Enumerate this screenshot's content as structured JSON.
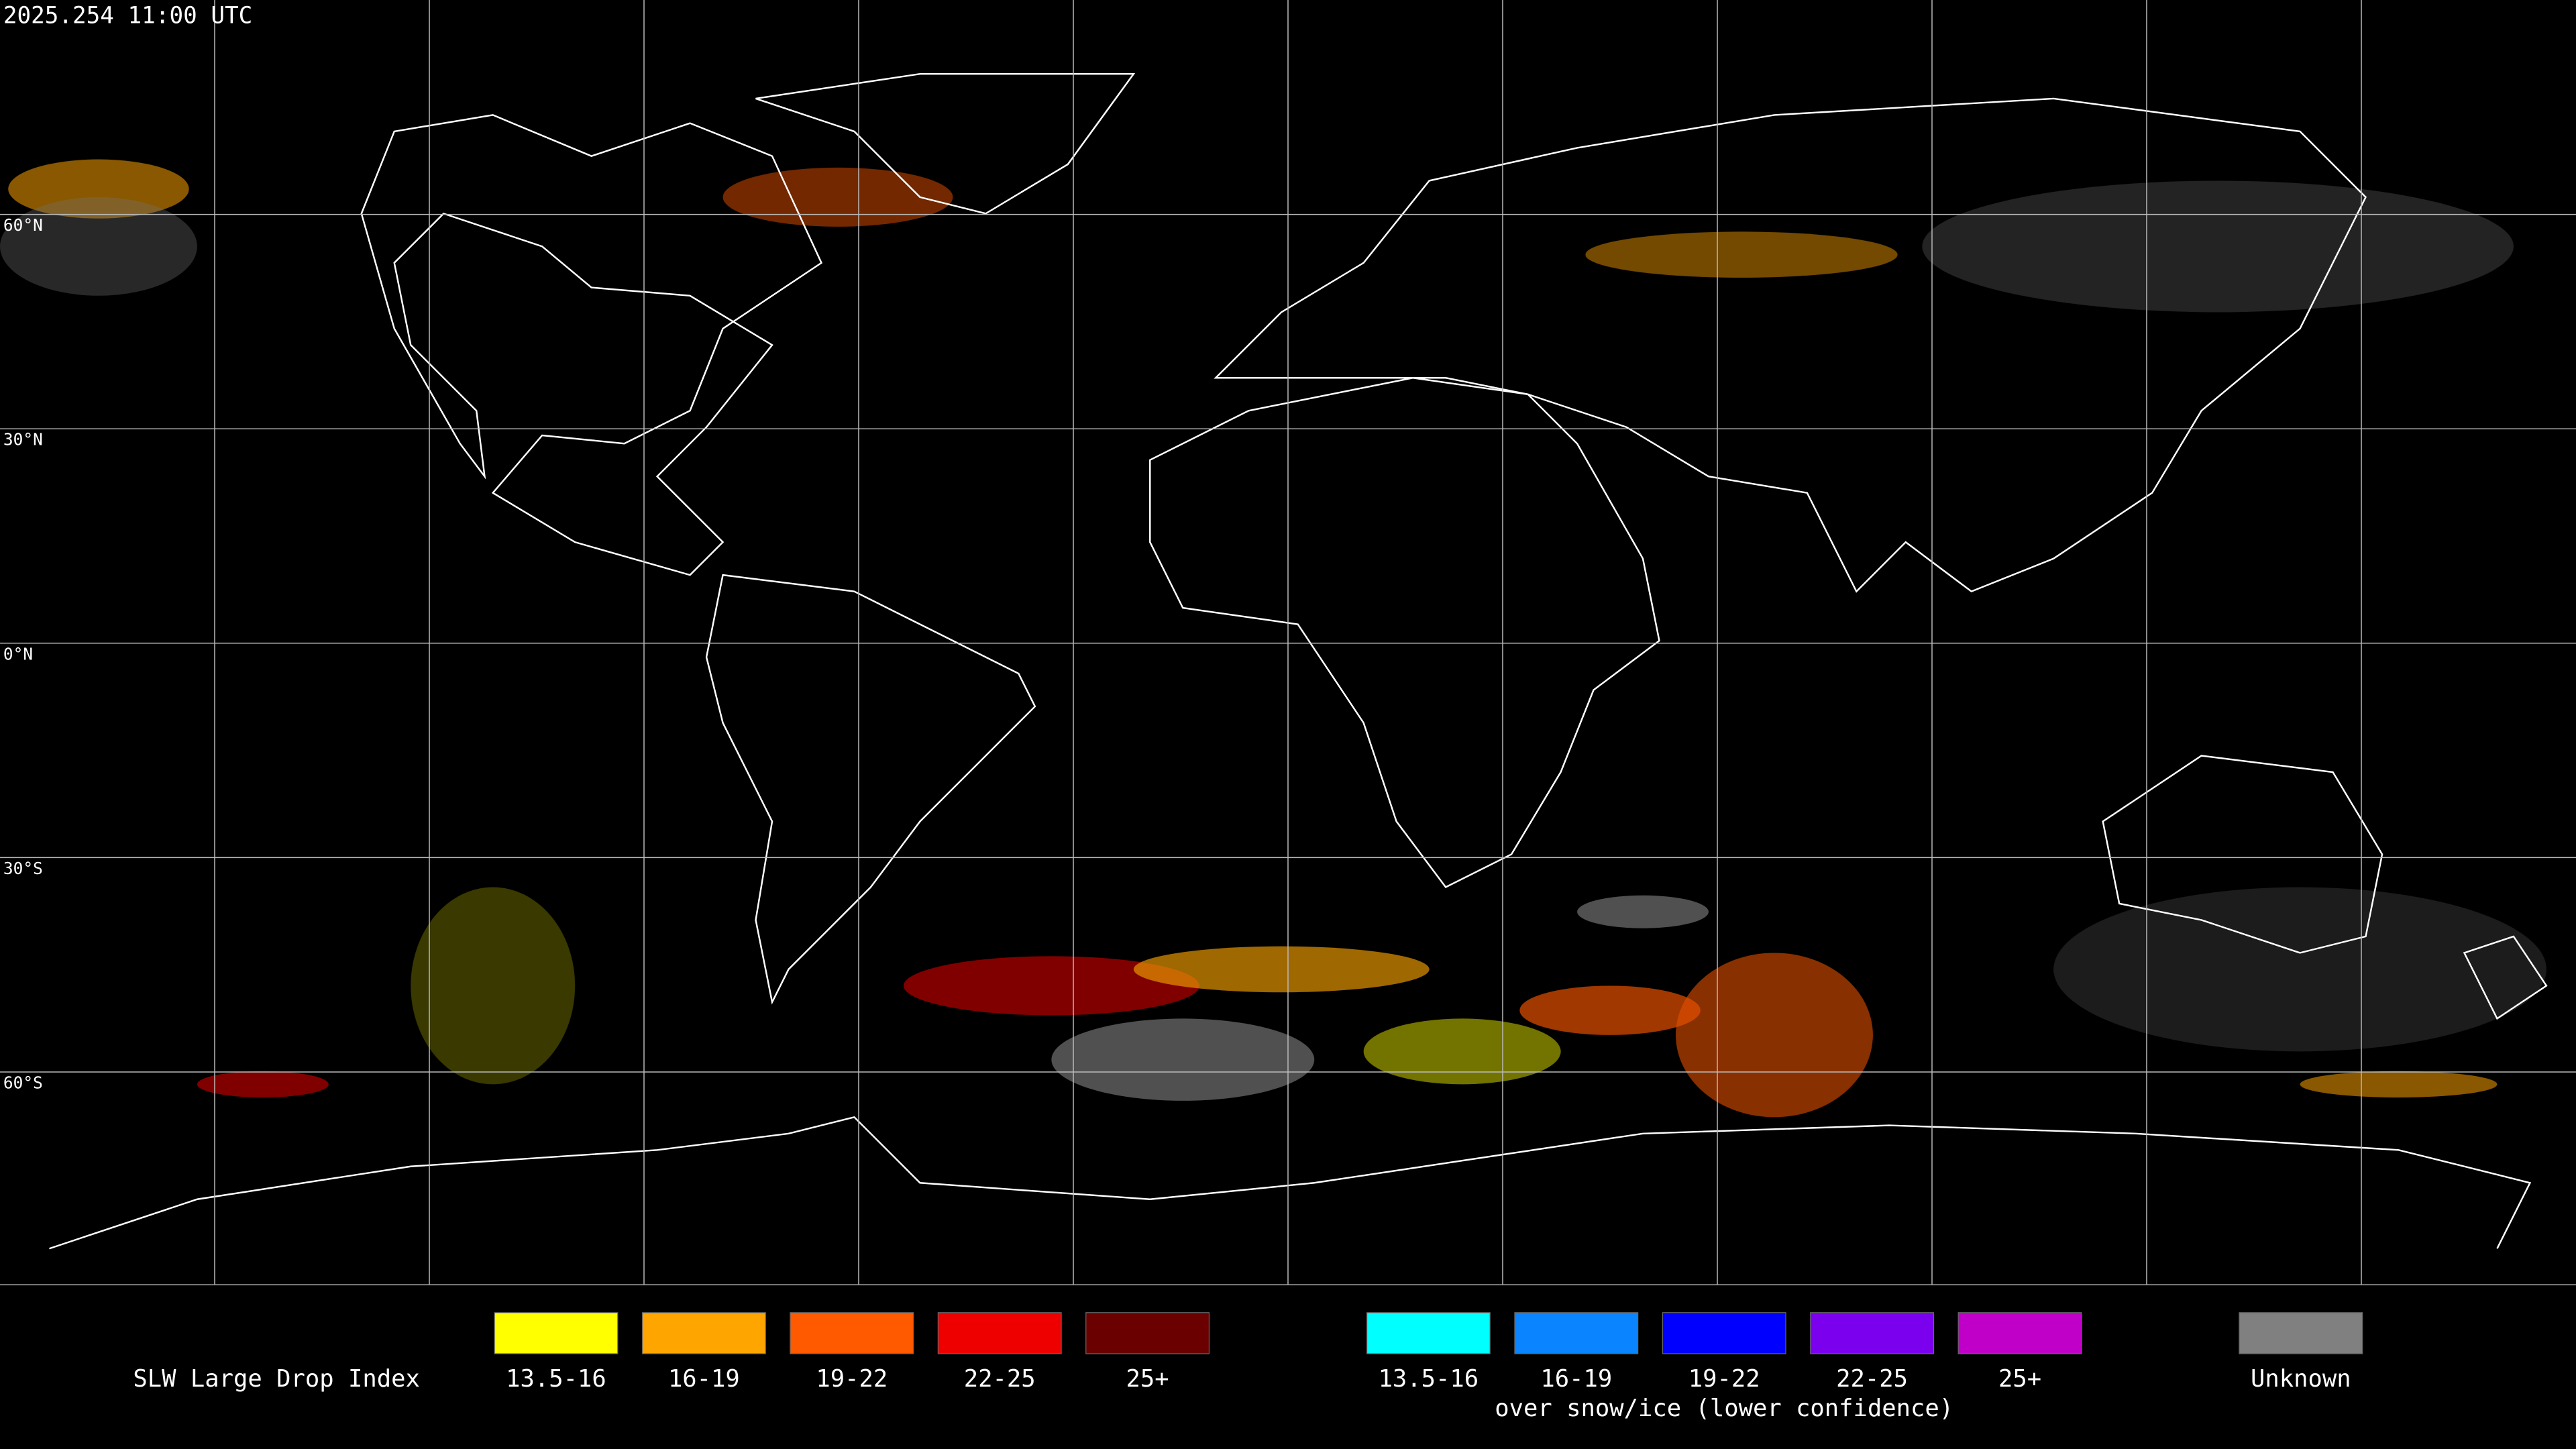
{
  "header": {
    "timestamp": "2025.254 11:00 UTC"
  },
  "map": {
    "latitude_labels": [
      "60°N",
      "30°N",
      "0°N",
      "30°S",
      "60°S"
    ]
  },
  "legend": {
    "title": "SLW Large Drop Index",
    "groups": [
      {
        "items": [
          {
            "label": "13.5-16",
            "color": "#ffff00"
          },
          {
            "label": "16-19",
            "color": "#ffa500"
          },
          {
            "label": "19-22",
            "color": "#ff5a00"
          },
          {
            "label": "22-25",
            "color": "#ee0000"
          },
          {
            "label": "25+",
            "color": "#6a0000"
          }
        ]
      },
      {
        "items": [
          {
            "label": "13.5-16",
            "color": "#00ffff"
          },
          {
            "label": "16-19",
            "color": "#0a84ff"
          },
          {
            "label": "19-22",
            "color": "#0000ff"
          },
          {
            "label": "22-25",
            "color": "#7a00ee"
          },
          {
            "label": "25+",
            "color": "#c000c8"
          }
        ],
        "caption": "over snow/ice (lower confidence)"
      },
      {
        "items": [
          {
            "label": "Unknown",
            "color": "#808080"
          }
        ]
      }
    ]
  }
}
